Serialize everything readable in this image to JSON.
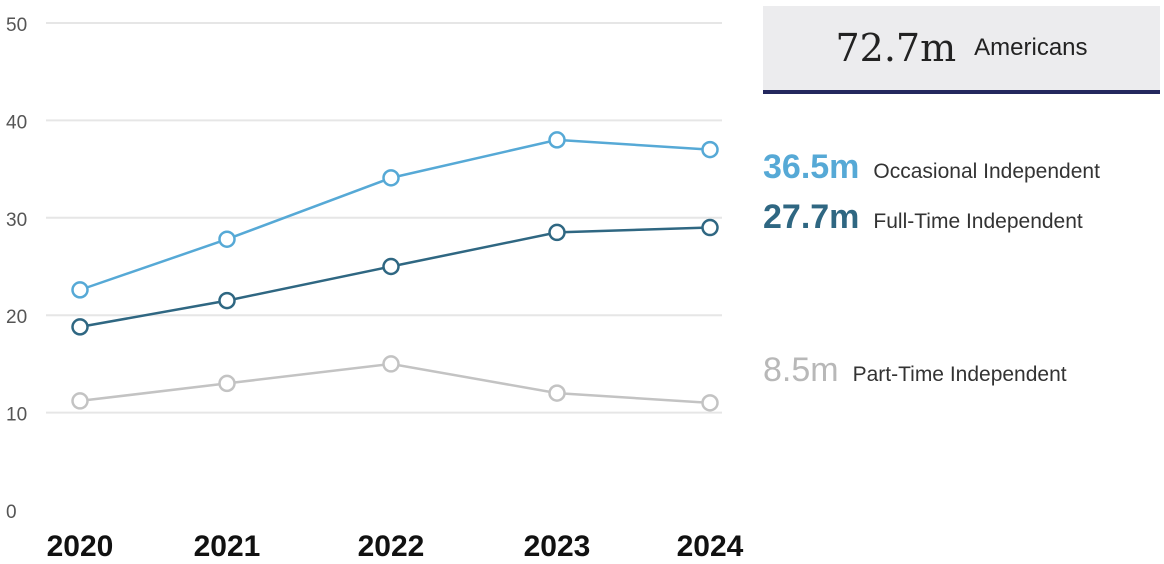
{
  "chart_data": {
    "type": "line",
    "x": [
      "2020",
      "2021",
      "2022",
      "2023",
      "2024"
    ],
    "y_ticks": [
      "0",
      "10",
      "20",
      "30",
      "40",
      "50"
    ],
    "ylim": [
      0,
      50
    ],
    "grid": true,
    "series": [
      {
        "name": "Occasional Independent",
        "color": "#56a9d6",
        "values": [
          22.6,
          27.8,
          34.1,
          38.0,
          37.0
        ]
      },
      {
        "name": "Full-Time Independent",
        "color": "#2f6782",
        "values": [
          18.8,
          21.5,
          25.0,
          28.5,
          29.0
        ]
      },
      {
        "name": "Part-Time Independent",
        "color": "#c3c3c3",
        "values": [
          11.2,
          13.0,
          15.0,
          12.0,
          11.0
        ]
      }
    ]
  },
  "summary": {
    "value": "72.7m",
    "label": "Americans"
  },
  "legend": [
    {
      "value": "36.5m",
      "label": "Occasional Independent",
      "color": "#56a9d6"
    },
    {
      "value": "27.7m",
      "label": "Full-Time Independent",
      "color": "#2f6782"
    },
    {
      "value": "8.5m",
      "label": "Part-Time Independent",
      "color": "#b8b8b8"
    }
  ]
}
